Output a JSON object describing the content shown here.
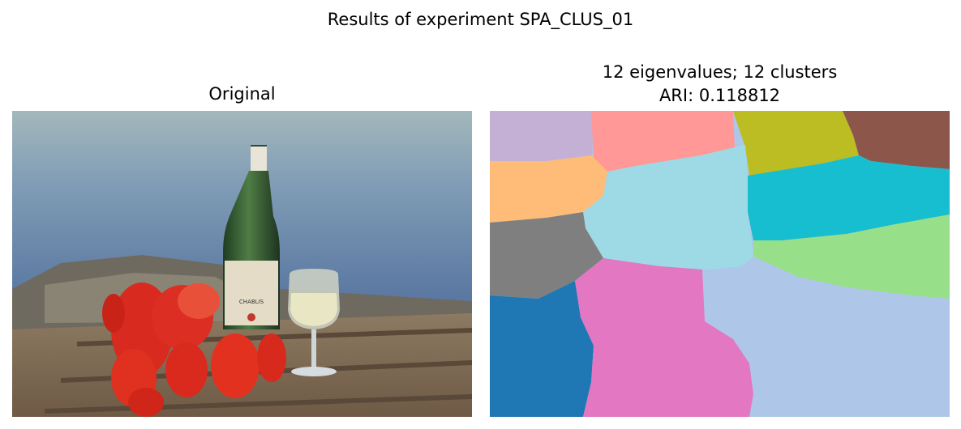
{
  "figure": {
    "suptitle": "Results of experiment SPA_CLUS_01"
  },
  "left_panel": {
    "title": "Original"
  },
  "right_panel": {
    "title_line1": "12 eigenvalues; 12 clusters",
    "title_line2": "ARI: 0.118812",
    "cluster_colors": [
      "#c5b0d5",
      "#ff9896",
      "#bcbd22",
      "#8c564b",
      "#ffbb78",
      "#9edae5",
      "#17becf",
      "#7f7f7f",
      "#98df8a",
      "#1f77b4",
      "#e377c2",
      "#aec7e8"
    ]
  },
  "photo": {
    "bottle_label": "CHABLIS"
  }
}
